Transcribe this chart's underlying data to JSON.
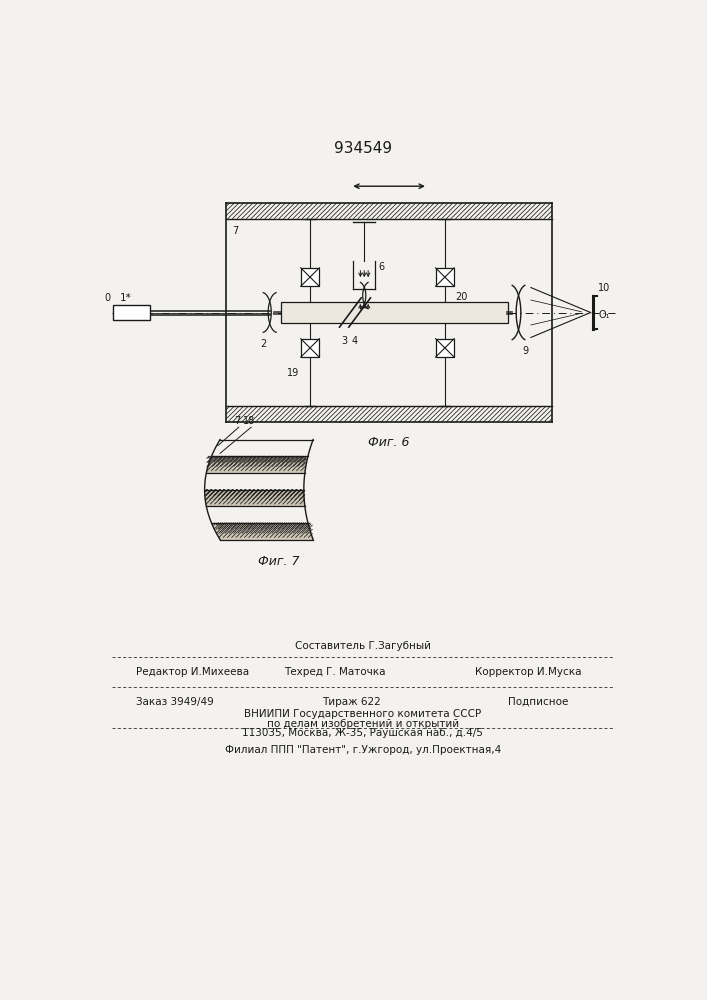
{
  "title": "934549",
  "fig6_label": "Фиг. 6",
  "fig7_label": "Фиг. 7",
  "bg_color": "#f4f2ee",
  "line_color": "#1a1a1a",
  "footer_sestavitel": "Составитель Г.Загубный",
  "footer_redaktor": "Редактор И.Михеева",
  "footer_tehred": "Техред Г. Маточка",
  "footer_korrektor": "Корректор И.Муска",
  "footer_zakaz": "Заказ 3949/49",
  "footer_tirazh": "Тираж 622",
  "footer_podpisnoe": "Подписное",
  "footer_vniipи1": "ВНИИПИ Государственного комитета СССР",
  "footer_vniipи2": "по делам изобретений и открытий",
  "footer_vniipи3": "113035, Москва, Ж-35, Раушская наб., д.4/5",
  "footer_filial": "Филиал ППП \"Патент\", г.Ужгород, ул.Проектная,4"
}
